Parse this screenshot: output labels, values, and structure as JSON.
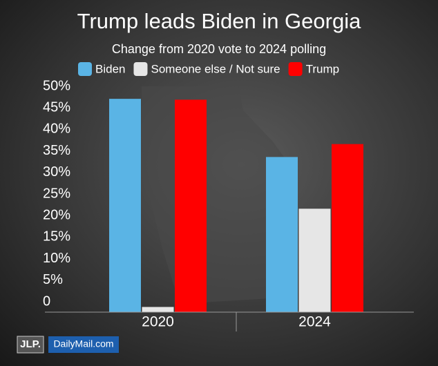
{
  "chart_data": {
    "type": "bar",
    "title": "Trump leads Biden in Georgia",
    "subtitle": "Change from 2020 vote to 2024 polling",
    "categories": [
      "2020",
      "2024"
    ],
    "series": [
      {
        "name": "Biden",
        "color": "#5ab4e5",
        "values": [
          49.5,
          36
        ]
      },
      {
        "name": "Someone else / Not sure",
        "color": "#e6e6e6",
        "values": [
          1.2,
          24
        ]
      },
      {
        "name": "Trump",
        "color": "#ff0000",
        "values": [
          49.3,
          39
        ]
      }
    ],
    "ylim": [
      0,
      50
    ],
    "yticks": [
      0,
      {
        "value": 5,
        "label": "5%"
      },
      {
        "value": 10,
        "label": "10%"
      },
      {
        "value": 15,
        "label": "15%"
      },
      {
        "value": 20,
        "label": "20%"
      },
      {
        "value": 25,
        "label": "25%"
      },
      {
        "value": 30,
        "label": "30%"
      },
      {
        "value": 35,
        "label": "35%"
      },
      {
        "value": 40,
        "label": "40%"
      },
      {
        "value": 45,
        "label": "45%"
      },
      {
        "value": 50,
        "label": "50%"
      }
    ],
    "grid": false
  },
  "branding": {
    "left": "JLP.",
    "right": "DailyMail.com"
  }
}
